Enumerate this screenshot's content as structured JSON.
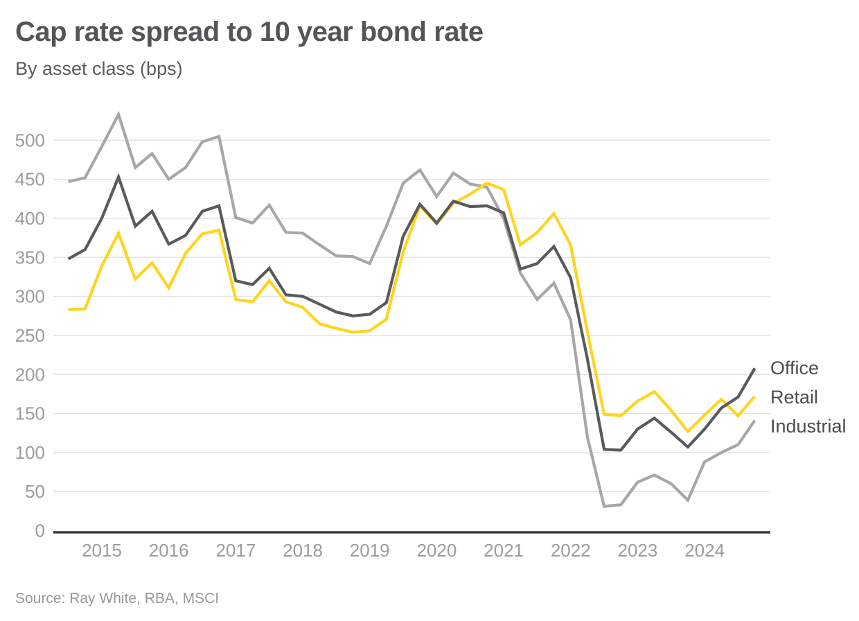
{
  "page": {
    "title": "Cap rate spread to 10 year bond rate",
    "subtitle": "By asset class (bps)",
    "source": "Source: Ray White, RBA, MSCI"
  },
  "colors": {
    "office": "#595a5c",
    "retail": "#ffd41e",
    "industrial": "#a9a7a4",
    "grid": "#e3e3e3",
    "axis": "#3b3b3d",
    "tick_label": "#9c9c9c",
    "title_text": "#54555a",
    "legend_text": "#4b4c4e"
  },
  "chart_data": {
    "type": "line",
    "title": "Cap rate spread to 10 year bond rate",
    "subtitle": "By asset class (bps)",
    "xlabel": "",
    "ylabel": "bps",
    "grid": "horizontal",
    "legend_position": "right-of-line-ends",
    "ylim": [
      0,
      560
    ],
    "y_ticks": [
      0,
      50,
      100,
      150,
      200,
      250,
      300,
      350,
      400,
      450,
      500
    ],
    "x_tick_labels": [
      "2015",
      "2016",
      "2017",
      "2018",
      "2019",
      "2020",
      "2021",
      "2022",
      "2023",
      "2024"
    ],
    "categories": [
      "2014 Q3",
      "2014 Q4",
      "2015 Q1",
      "2015 Q2",
      "2015 Q3",
      "2015 Q4",
      "2016 Q1",
      "2016 Q2",
      "2016 Q3",
      "2016 Q4",
      "2017 Q1",
      "2017 Q2",
      "2017 Q3",
      "2017 Q4",
      "2018 Q1",
      "2018 Q2",
      "2018 Q3",
      "2018 Q4",
      "2019 Q1",
      "2019 Q2",
      "2019 Q3",
      "2019 Q4",
      "2020 Q1",
      "2020 Q2",
      "2020 Q3",
      "2020 Q4",
      "2021 Q1",
      "2021 Q2",
      "2021 Q3",
      "2021 Q4",
      "2022 Q1",
      "2022 Q2",
      "2022 Q3",
      "2022 Q4",
      "2023 Q1",
      "2023 Q2",
      "2023 Q3",
      "2023 Q4",
      "2024 Q1",
      "2024 Q2",
      "2024 Q3",
      "2024 Q4"
    ],
    "series": [
      {
        "name": "Office",
        "color_key": "office",
        "values": [
          348,
          360,
          400,
          453,
          390,
          409,
          367,
          378,
          409,
          416,
          320,
          315,
          336,
          302,
          300,
          290,
          280,
          275,
          277,
          292,
          377,
          418,
          394,
          422,
          415,
          416,
          407,
          335,
          342,
          364,
          324,
          220,
          104,
          103,
          130,
          144,
          126,
          107,
          130,
          157,
          171,
          208
        ]
      },
      {
        "name": "Retail",
        "color_key": "retail",
        "values": [
          283,
          284,
          339,
          381,
          322,
          343,
          311,
          355,
          380,
          385,
          296,
          293,
          320,
          293,
          286,
          265,
          259,
          254,
          256,
          271,
          357,
          416,
          393,
          419,
          431,
          445,
          437,
          366,
          382,
          406,
          366,
          255,
          149,
          147,
          166,
          178,
          154,
          127,
          148,
          168,
          147,
          172
        ]
      },
      {
        "name": "Industrial",
        "color_key": "industrial",
        "values": [
          447,
          452,
          492,
          533,
          465,
          483,
          450,
          465,
          498,
          505,
          401,
          394,
          417,
          382,
          381,
          366,
          352,
          351,
          342,
          390,
          445,
          462,
          428,
          458,
          444,
          440,
          400,
          330,
          296,
          317,
          270,
          120,
          31,
          33,
          62,
          71,
          60,
          39,
          88,
          100,
          110,
          141
        ]
      }
    ]
  }
}
